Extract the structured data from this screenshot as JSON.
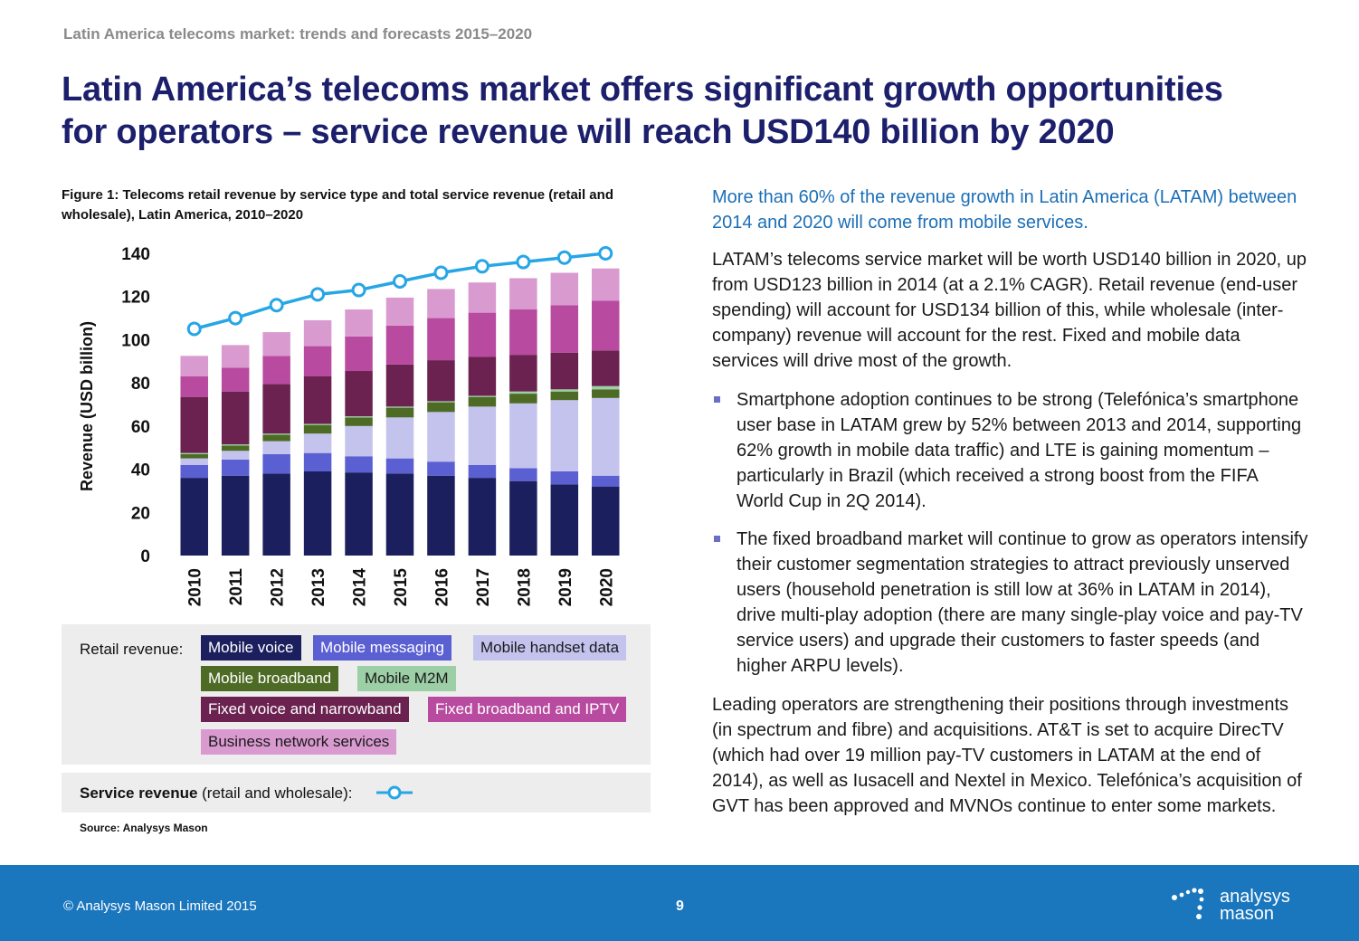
{
  "header": {
    "running_head": "Latin America telecoms market: trends and forecasts 2015–2020",
    "title_line1": "Latin America’s telecoms market offers significant growth opportunities",
    "title_line2": "for operators – service revenue will reach USD140 billion by 2020"
  },
  "figure": {
    "caption_line1": "Figure 1: Telecoms retail revenue by service type and total service revenue (retail and",
    "caption_line2": "wholesale), Latin America, 2010–2020",
    "source": "Source: Analysys Mason"
  },
  "legend": {
    "retail_label": "Retail revenue:",
    "service_label_bold": "Service revenue",
    "service_label_rest": " (retail and wholesale):"
  },
  "chart_data": {
    "type": "bar",
    "stacked": true,
    "categories": [
      "2010",
      "2011",
      "2012",
      "2013",
      "2014",
      "2015",
      "2016",
      "2017",
      "2018",
      "2019",
      "2020"
    ],
    "ylabel": "Revenue (USD billion)",
    "ylim": [
      0,
      140
    ],
    "yticks": [
      0,
      20,
      40,
      60,
      80,
      100,
      120,
      140
    ],
    "grid": false,
    "series": [
      {
        "name": "Mobile voice",
        "color": "#1c1f5e",
        "text_color": "#ffffff",
        "values": [
          36,
          37,
          38,
          39,
          38.5,
          38,
          37,
          36,
          34.5,
          33,
          32
        ]
      },
      {
        "name": "Mobile messaging",
        "color": "#5a5fd1",
        "text_color": "#ffffff",
        "values": [
          6,
          7.5,
          9,
          8.5,
          7.5,
          7,
          6.5,
          6,
          6,
          6,
          5
        ]
      },
      {
        "name": "Mobile handset data",
        "color": "#c3c3ee",
        "text_color": "#1a1a1a",
        "values": [
          3,
          4,
          6,
          9,
          14,
          19,
          23,
          27,
          30,
          33,
          36
        ]
      },
      {
        "name": "Mobile broadband",
        "color": "#4e6b26",
        "text_color": "#ffffff",
        "values": [
          2,
          2.5,
          3,
          4,
          4,
          4.5,
          4.5,
          4.5,
          4.5,
          4,
          4
        ]
      },
      {
        "name": "Mobile M2M",
        "color": "#9ccfa6",
        "text_color": "#1a1a1a",
        "values": [
          0.5,
          0.5,
          0.5,
          0.5,
          0.5,
          0.5,
          0.5,
          0.5,
          1,
          1,
          1.5
        ]
      },
      {
        "name": "Fixed voice and narrowband",
        "color": "#6b2250",
        "text_color": "#ffffff",
        "values": [
          26,
          24.5,
          23,
          22,
          21,
          19.5,
          19,
          18,
          17,
          17,
          16.5
        ]
      },
      {
        "name": "Fixed broadband and IPTV",
        "color": "#b84aa0",
        "text_color": "#ffffff",
        "values": [
          9.5,
          11,
          13,
          14,
          16,
          18,
          19.5,
          20.5,
          21,
          22,
          23
        ]
      },
      {
        "name": "Business network services",
        "color": "#d99ad0",
        "text_color": "#1a1a1a",
        "values": [
          9.5,
          10.5,
          11,
          12,
          12.5,
          13,
          13.5,
          14,
          14.5,
          15,
          15
        ]
      }
    ],
    "line_series": {
      "name": "Service revenue",
      "color": "#27a6e6",
      "values": [
        105,
        110,
        116,
        121,
        123,
        127,
        131,
        134,
        136,
        138,
        140
      ]
    }
  },
  "body": {
    "lead": "More than 60% of the revenue growth in Latin America (LATAM) between 2014 and 2020 will come from mobile services.",
    "para1": "LATAM’s telecoms service market will be worth USD140 billion in 2020, up from USD123 billion in 2014 (at a 2.1% CAGR). Retail revenue (end-user spending) will account for USD134 billion of this, while wholesale (inter-company) revenue will account for the rest. Fixed and mobile data services will drive most of the growth.",
    "bullet1": "Smartphone adoption continues to be strong (Telefónica’s smartphone user base in LATAM grew by 52% between 2013 and 2014, supporting 62% growth in mobile data traffic) and LTE is gaining momentum – particularly in Brazil (which received a strong boost from the FIFA World Cup in 2Q 2014).",
    "bullet2": "The fixed broadband market will continue to grow as operators intensify their customer segmentation strategies to attract previously unserved users (household penetration is still low at 36% in LATAM in 2014), drive multi-play adoption (there are many single-play voice and pay-TV service users) and upgrade their customers to faster speeds (and higher ARPU levels).",
    "para2": "Leading operators are strengthening their positions through investments (in spectrum and fibre) and acquisitions. AT&T is set to acquire DirecTV (which had over 19 million pay-TV customers in LATAM at the end of 2014), as well as Iusacell and Nextel in Mexico. Telefónica’s acquisition of GVT has been approved and MVNOs continue to enter some markets."
  },
  "footer": {
    "copyright": "© Analysys Mason Limited 2015",
    "page_number": "9",
    "brand_line1": "analysys",
    "brand_line2": "mason"
  }
}
